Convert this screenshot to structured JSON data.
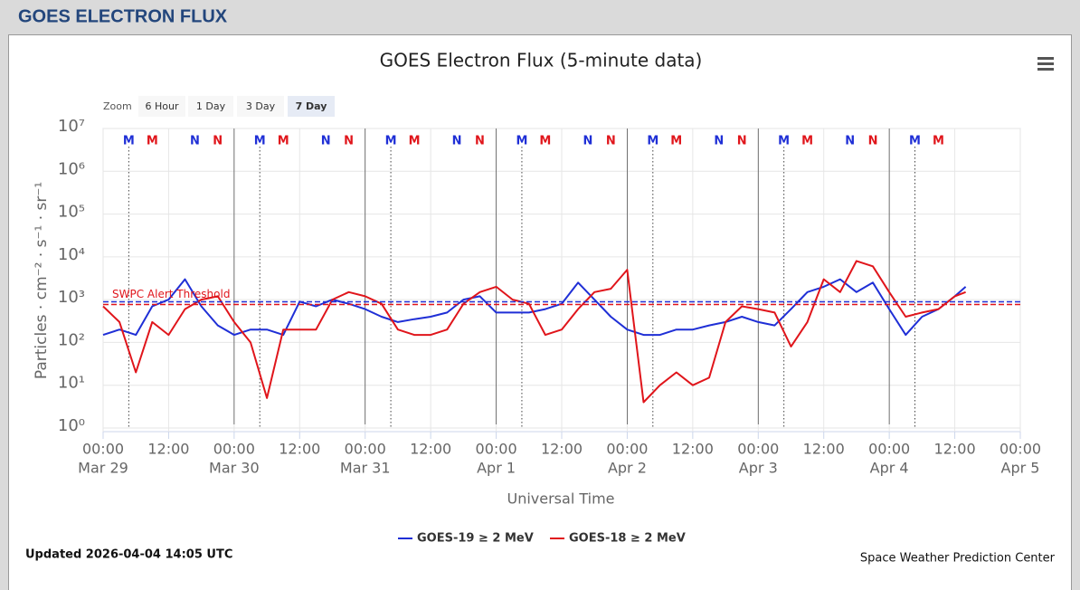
{
  "header": {
    "title": "GOES ELECTRON FLUX"
  },
  "zoom": {
    "label": "Zoom",
    "buttons": [
      "6 Hour",
      "1 Day",
      "3 Day",
      "7 Day"
    ],
    "selected": 3
  },
  "chart_data": {
    "type": "line",
    "title": "GOES Electron Flux (5-minute data)",
    "y_label": "Particles · cm⁻² · s⁻¹ · sr⁻¹",
    "x_label": "Universal Time",
    "log_y": true,
    "grid": true,
    "xlim": [
      0,
      168
    ],
    "ylim": [
      1,
      10000000
    ],
    "yticks": [
      {
        "value": 1,
        "label": "10⁰"
      },
      {
        "value": 10,
        "label": "10¹"
      },
      {
        "value": 100,
        "label": "10²"
      },
      {
        "value": 1000,
        "label": "10³"
      },
      {
        "value": 10000,
        "label": "10⁴"
      },
      {
        "value": 100000,
        "label": "10⁵"
      },
      {
        "value": 1000000,
        "label": "10⁶"
      },
      {
        "value": 10000000,
        "label": "10⁷"
      }
    ],
    "xticks": [
      {
        "value": 0,
        "label": "00:00",
        "date": "Mar 29"
      },
      {
        "value": 12,
        "label": "12:00"
      },
      {
        "value": 24,
        "label": "00:00",
        "date": "Mar 30"
      },
      {
        "value": 36,
        "label": "12:00"
      },
      {
        "value": 48,
        "label": "00:00",
        "date": "Mar 31"
      },
      {
        "value": 60,
        "label": "12:00"
      },
      {
        "value": 72,
        "label": "00:00",
        "date": "Apr 1"
      },
      {
        "value": 84,
        "label": "12:00"
      },
      {
        "value": 96,
        "label": "00:00",
        "date": "Apr 2"
      },
      {
        "value": 108,
        "label": "12:00"
      },
      {
        "value": 120,
        "label": "00:00",
        "date": "Apr 3"
      },
      {
        "value": 132,
        "label": "12:00"
      },
      {
        "value": 144,
        "label": "00:00",
        "date": "Apr 4"
      },
      {
        "value": 156,
        "label": "12:00"
      },
      {
        "value": 168,
        "label": "00:00",
        "date": "Apr 5"
      }
    ],
    "x": [
      0,
      3,
      6,
      9,
      12,
      15,
      18,
      21,
      24,
      27,
      30,
      33,
      36,
      39,
      42,
      45,
      48,
      51,
      54,
      57,
      60,
      63,
      66,
      69,
      72,
      75,
      78,
      81,
      84,
      87,
      90,
      93,
      96,
      99,
      102,
      105,
      108,
      111,
      114,
      117,
      120,
      123,
      126,
      129,
      132,
      135,
      138,
      141,
      144,
      147,
      150,
      153,
      156,
      158
    ],
    "series": [
      {
        "name": "GOES-19 ≥ 2 MeV",
        "color": "#1f2fd6",
        "values": [
          150,
          200,
          150,
          700,
          1000,
          3000,
          700,
          250,
          150,
          200,
          200,
          150,
          900,
          700,
          1000,
          800,
          600,
          400,
          300,
          350,
          400,
          500,
          1000,
          1200,
          500,
          500,
          500,
          600,
          800,
          2500,
          1000,
          400,
          200,
          150,
          150,
          200,
          200,
          250,
          300,
          400,
          300,
          250,
          600,
          1500,
          2000,
          3000,
          1500,
          2500,
          600,
          150,
          400,
          600,
          1200,
          2000
        ]
      },
      {
        "name": "GOES-18 ≥ 2 MeV",
        "color": "#e0151b",
        "values": [
          700,
          300,
          20,
          300,
          150,
          600,
          1000,
          1200,
          300,
          100,
          5,
          200,
          200,
          200,
          1000,
          1500,
          1200,
          800,
          200,
          150,
          150,
          200,
          800,
          1500,
          2000,
          1000,
          800,
          150,
          200,
          600,
          1500,
          1800,
          5000,
          4,
          10,
          20,
          10,
          15,
          300,
          700,
          600,
          500,
          80,
          300,
          3000,
          1500,
          8000,
          6000,
          1500,
          400,
          500,
          600,
          1200,
          1500
        ]
      }
    ],
    "threshold": {
      "label": "SWPC Alert Threshold",
      "value": 850
    },
    "local_time_markers": [
      {
        "label": "M",
        "color": "#1f2fd6",
        "guide_lines": true,
        "x": [
          4.7,
          28.7,
          52.7,
          76.7,
          100.7,
          124.7,
          148.7
        ]
      },
      {
        "label": "M",
        "color": "#e0151b",
        "x": [
          9,
          33,
          57,
          81,
          105,
          129,
          153
        ]
      },
      {
        "label": "N",
        "color": "#1f2fd6",
        "x": [
          16.8,
          40.8,
          64.8,
          88.8,
          112.8,
          136.8
        ]
      },
      {
        "label": "N",
        "color": "#e0151b",
        "x": [
          21,
          45,
          69,
          93,
          117,
          141
        ]
      }
    ],
    "updated": "Updated 2026-04-04 14:05 UTC",
    "credit": "Space Weather Prediction Center"
  }
}
